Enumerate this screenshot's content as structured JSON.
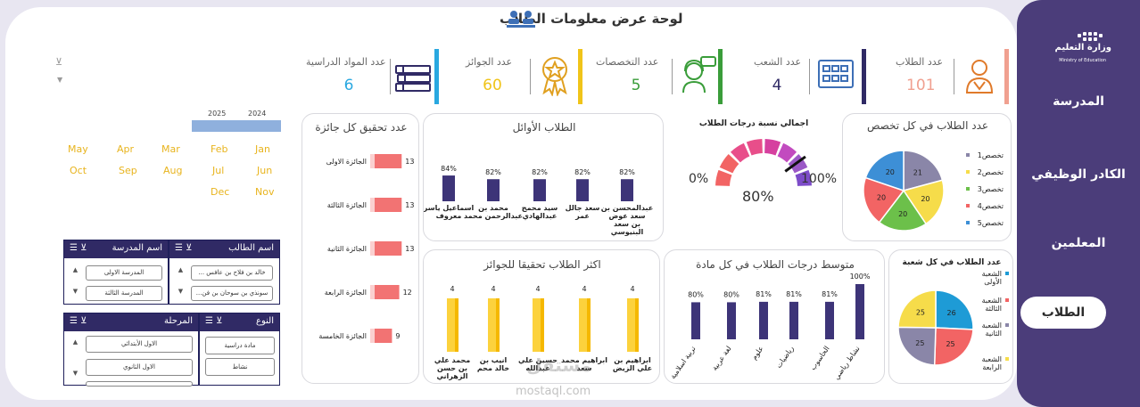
{
  "header": {
    "title": "لوحة عرض معلومات الطلاب"
  },
  "sidebar": {
    "items": [
      {
        "label": "المدرسة"
      },
      {
        "label": "الكادر الوظيفي"
      },
      {
        "label": "المعلمين"
      },
      {
        "label": "الطلاب"
      }
    ],
    "active": "الطلاب"
  },
  "ministry": {
    "ar": "وزارة التعليم",
    "en": "Ministry of Education"
  },
  "kpis": [
    {
      "label": "عدد الطلاب",
      "value": "101",
      "color": "#f0a090",
      "icon": "student-icon"
    },
    {
      "label": "عدد الشعب",
      "value": "4",
      "color": "#302a65",
      "icon": "classroom-icon"
    },
    {
      "label": "عدد التخصصات",
      "value": "5",
      "color": "#3a9d3a",
      "icon": "support-agent-icon"
    },
    {
      "label": "عدد الجوائز",
      "value": "60",
      "color": "#f0c419",
      "icon": "award-medal-icon"
    },
    {
      "label": "عدد المواد الدراسية",
      "value": "6",
      "color": "#29a8e0",
      "icon": "books-icon"
    }
  ],
  "timeline": {
    "years": [
      "2024",
      "2025"
    ],
    "rows": [
      [
        "Jan",
        "Feb",
        "Mar",
        "Apr",
        "May"
      ],
      [
        "Jun",
        "Jul",
        "Aug",
        "Sep",
        "Oct"
      ],
      [
        "Nov",
        "Dec"
      ]
    ]
  },
  "charts": {
    "by_specialization": {
      "title": "عدد الطلاب في كل تخصص",
      "chart_data": {
        "type": "pie",
        "categories": [
          "تخصص1",
          "تخصص2",
          "تخصص3",
          "تخصص4",
          "تخصص5"
        ],
        "values": [
          21,
          20,
          20,
          20,
          20
        ],
        "colors": [
          "#8a86a8",
          "#f6dc4a",
          "#6cc04a",
          "#f26464",
          "#3d8fd6"
        ]
      }
    },
    "overall_grade": {
      "title": "اجمالي نسبة درجات الطلاب",
      "min_label": "0%",
      "max_label": "100%",
      "value_label": "80%",
      "chart_data": {
        "type": "gauge",
        "value": 80,
        "min": 0,
        "max": 100
      }
    },
    "top_students": {
      "title": "الطلاب الأوائل",
      "chart_data": {
        "type": "bar",
        "categories": [
          "عبدالمحسن بن سعد عوض بن سعد البنيوسي",
          "سعد جالل عمر",
          "سيد محمج عبدالهادي",
          "محمد بن عبدالرحمن محمد",
          "اسماعيل ياسر معروف"
        ],
        "values": [
          82,
          82,
          82,
          82,
          84
        ],
        "data_labels": [
          "82%",
          "82%",
          "82%",
          "82%",
          "84%"
        ],
        "ylim": [
          0,
          100
        ]
      }
    },
    "awards": {
      "title": "عدد تحقيق كل جائزة",
      "chart_data": {
        "type": "bar",
        "categories": [
          "الجائزة الاولى",
          "الجائزة الثالثة",
          "الجائزة الثانية",
          "الجائزة الرابعة",
          "الجائزة الخامسة"
        ],
        "values": [
          13,
          13,
          13,
          12,
          9
        ],
        "xlim": [
          0,
          14
        ]
      }
    },
    "by_section": {
      "title": "عدد الطلاب في كل شعبة",
      "chart_data": {
        "type": "pie",
        "categories": [
          "الشعبة الأولى",
          "الشعبة الثالثة",
          "الشعبة الثانية",
          "الشعبة الرابعة"
        ],
        "values": [
          26,
          25,
          25,
          25
        ],
        "colors": [
          "#1e9bd6",
          "#f26464",
          "#8a86a8",
          "#f6dc4a"
        ]
      }
    },
    "avg_by_subject": {
      "title": "متوسط درجات الطلاب في كل مادة",
      "chart_data": {
        "type": "bar",
        "categories": [
          "نشاط رياضي",
          "الحاسوب",
          "رياضيات",
          "علوم",
          "لغة عربية",
          "تربية اسلامية"
        ],
        "values": [
          100,
          81,
          81,
          81,
          80,
          80
        ],
        "data_labels": [
          "100%",
          "81%",
          "81%",
          "81%",
          "80%",
          "80%"
        ],
        "ylim": [
          0,
          100
        ]
      }
    },
    "top_award_students": {
      "title": "اكثر الطلاب تحقيقا للجوائز",
      "chart_data": {
        "type": "bar",
        "categories": [
          "ابراهيم بن علي الزيض",
          "ابراهيم محمد سعد",
          "حسين علي عبدالله",
          "انيب بن خالد محم",
          "محمد علي بن حسن الزهراني"
        ],
        "values": [
          4,
          4,
          4,
          4,
          4
        ],
        "ylim": [
          0,
          5
        ]
      }
    }
  },
  "slicers": {
    "student_name": {
      "title": "اسم الطالب",
      "items": [
        "خالد بن فلاح بن عافس ...",
        "سونذي بن سوحان بن فن..."
      ]
    },
    "school_name": {
      "title": "اسم المدرسة",
      "items": [
        "المدرسة الاولى",
        "المدرسة الثالثة"
      ]
    },
    "type": {
      "title": "النوع",
      "items": [
        "مادة دراسية",
        "نشاط"
      ]
    },
    "stage": {
      "title": "المرحلة",
      "items": [
        "الاول الأبتدائي",
        "الاول الثانوي",
        ""
      ]
    }
  },
  "watermark": {
    "ar": "مستقل",
    "en": "mostaql.com"
  }
}
